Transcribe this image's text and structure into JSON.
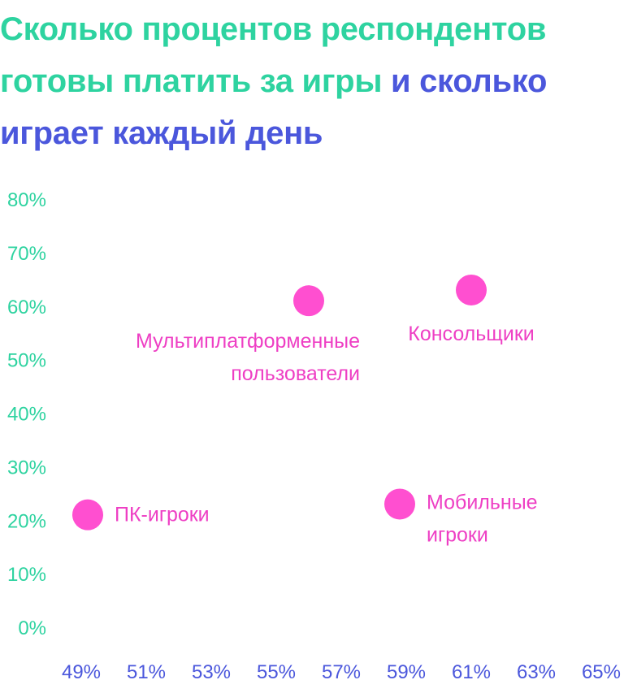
{
  "title": {
    "part1": "Сколько процентов респондентов готовы платить за игры",
    "part2": " и сколько играет каждый день"
  },
  "colors": {
    "green": "#2ed3a0",
    "blue": "#4b57dc",
    "pink": "#ff4fd0",
    "label_pink": "#ee3fc4"
  },
  "chart_data": {
    "type": "scatter",
    "title": "Сколько процентов респондентов готовы платить за игры и сколько играет каждый день",
    "xlim": [
      49,
      65
    ],
    "ylim": [
      0,
      80
    ],
    "x_ticks": [
      "49%",
      "51%",
      "53%",
      "55%",
      "57%",
      "59%",
      "61%",
      "63%",
      "65%"
    ],
    "y_ticks": [
      "0%",
      "10%",
      "20%",
      "30%",
      "40%",
      "50%",
      "60%",
      "70%",
      "80%"
    ],
    "grid": false,
    "points": [
      {
        "label": "ПК-игроки",
        "lines": [
          "ПК-игроки"
        ],
        "x": 49.2,
        "y": 21,
        "label_side": "right"
      },
      {
        "label": "Мультиплатформенные пользователи",
        "lines": [
          "Мультиплатформенные",
          "пользователи"
        ],
        "x": 56.0,
        "y": 61,
        "label_side": "below-left"
      },
      {
        "label": "Консольщики",
        "lines": [
          "Консольщики"
        ],
        "x": 61.0,
        "y": 63,
        "label_side": "below"
      },
      {
        "label": "Мобильные игроки",
        "lines": [
          "Мобильные",
          "игроки"
        ],
        "x": 58.8,
        "y": 23,
        "label_side": "right"
      }
    ]
  }
}
